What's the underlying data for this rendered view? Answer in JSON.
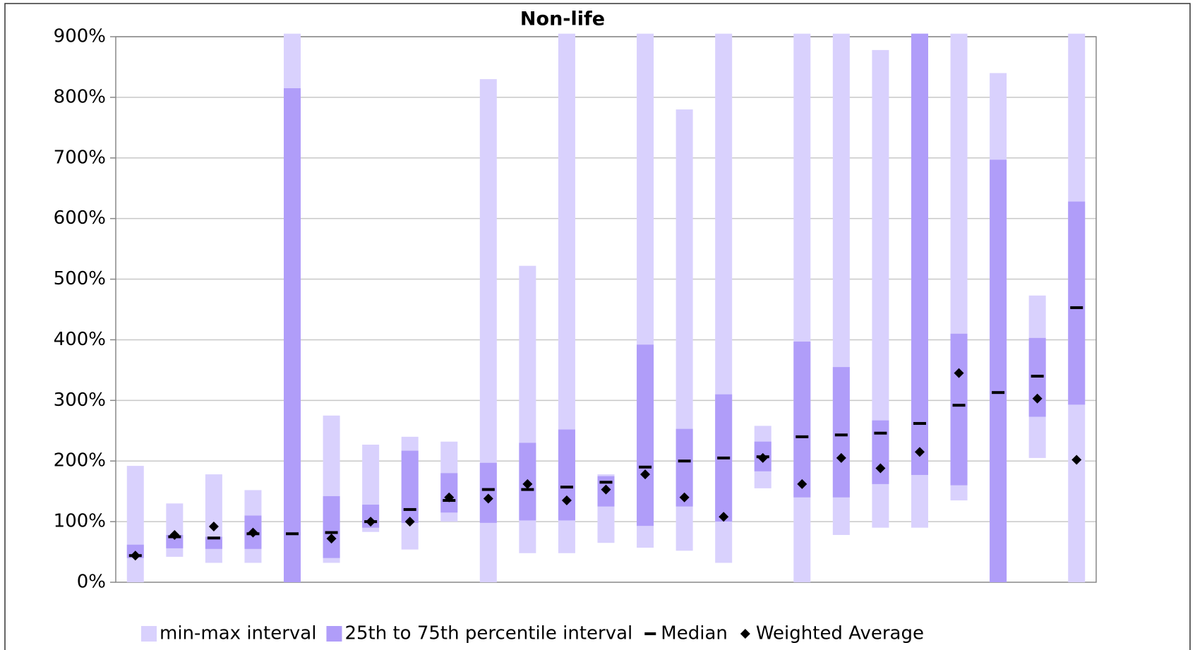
{
  "chart_data": {
    "type": "range",
    "title": "Non-life",
    "categories": [
      null,
      null,
      null,
      null,
      null,
      null,
      null,
      null,
      null,
      null,
      null,
      null,
      null,
      null,
      null,
      null,
      null,
      null,
      null,
      null,
      null,
      null,
      null,
      null,
      null
    ],
    "ylim": [
      0,
      900
    ],
    "yticks": [
      {
        "value": 0,
        "label": "0%"
      },
      {
        "value": 100,
        "label": "100%"
      },
      {
        "value": 200,
        "label": "200%"
      },
      {
        "value": 300,
        "label": "300%"
      },
      {
        "value": 400,
        "label": "400%"
      },
      {
        "value": 500,
        "label": "500%"
      },
      {
        "value": 600,
        "label": "600%"
      },
      {
        "value": 700,
        "label": "700%"
      },
      {
        "value": 800,
        "label": "800%"
      },
      {
        "value": 900,
        "label": "900%"
      }
    ],
    "grid": true,
    "legend": "bottom",
    "series": [
      {
        "name": "min-max interval",
        "color": "#d9d1fd",
        "low": [
          0,
          42,
          32,
          32,
          0,
          32,
          83,
          54,
          100,
          0,
          48,
          48,
          65,
          57,
          52,
          32,
          155,
          0,
          78,
          90,
          90,
          135,
          0,
          205,
          0
        ],
        "high": [
          192,
          130,
          178,
          152,
          905,
          275,
          227,
          240,
          232,
          830,
          522,
          905,
          178,
          905,
          780,
          905,
          258,
          905,
          905,
          878,
          905,
          905,
          840,
          473,
          905
        ]
      },
      {
        "name": "25th to 75th percentile interval",
        "color": "#b09df9",
        "low": [
          40,
          56,
          55,
          55,
          0,
          40,
          90,
          98,
          115,
          98,
          102,
          102,
          125,
          93,
          125,
          100,
          183,
          140,
          140,
          162,
          177,
          160,
          0,
          273,
          293
        ],
        "high": [
          62,
          78,
          75,
          110,
          815,
          142,
          128,
          217,
          180,
          197,
          230,
          252,
          175,
          392,
          253,
          310,
          232,
          397,
          355,
          267,
          905,
          410,
          697,
          403,
          628
        ]
      },
      {
        "name": "Median",
        "color": "#000000",
        "values": [
          44,
          75,
          73,
          80,
          80,
          82,
          100,
          120,
          135,
          153,
          153,
          157,
          165,
          190,
          200,
          205,
          207,
          240,
          243,
          246,
          262,
          292,
          313,
          340,
          453
        ]
      },
      {
        "name": "Weighted Average",
        "color": "#000000",
        "values": [
          44,
          78,
          92,
          82,
          null,
          72,
          100,
          100,
          140,
          138,
          162,
          135,
          153,
          178,
          140,
          108,
          205,
          162,
          205,
          188,
          215,
          345,
          null,
          303,
          202
        ]
      }
    ]
  }
}
